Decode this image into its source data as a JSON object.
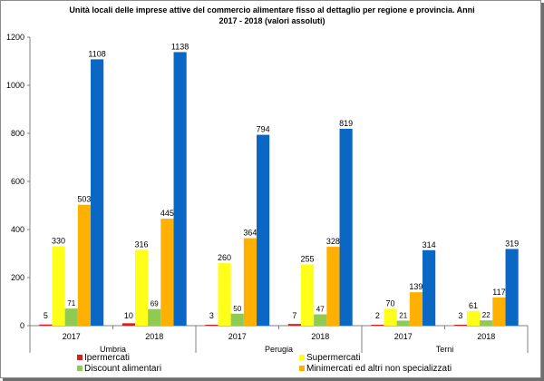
{
  "chart_data": {
    "type": "bar",
    "title_line1": "Unità locali delle imprese attive del commercio alimentare fisso al dettaglio per regione e provincia. Anni",
    "title_line2": "2017 - 2018    (valori assoluti)",
    "ylim": [
      0,
      1200
    ],
    "yticks": [
      0,
      200,
      400,
      600,
      800,
      1000,
      1200
    ],
    "groups": [
      "Umbria",
      "Perugia",
      "Terni"
    ],
    "categories": [
      "2017",
      "2018",
      "2017",
      "2018",
      "2017",
      "2018"
    ],
    "group_of_category": [
      0,
      0,
      1,
      1,
      2,
      2
    ],
    "grid": false,
    "legend_position": "bottom",
    "series": [
      {
        "name": "Ipermercati",
        "color": "#d42020",
        "values": [
          5,
          10,
          3,
          7,
          2,
          3
        ]
      },
      {
        "name": "Supermercati",
        "color": "#ffff1a",
        "values": [
          330,
          316,
          260,
          255,
          70,
          61
        ]
      },
      {
        "name": "Discount alimentari",
        "color": "#8fca52",
        "values": [
          71,
          69,
          50,
          47,
          21,
          22
        ]
      },
      {
        "name": "Minimercati ed altri non specializzati",
        "color": "#ffb000",
        "values": [
          503,
          445,
          364,
          328,
          139,
          117
        ]
      },
      {
        "name": "",
        "color": "#0a68c4",
        "values": [
          1108,
          1138,
          794,
          819,
          314,
          319
        ]
      }
    ]
  }
}
